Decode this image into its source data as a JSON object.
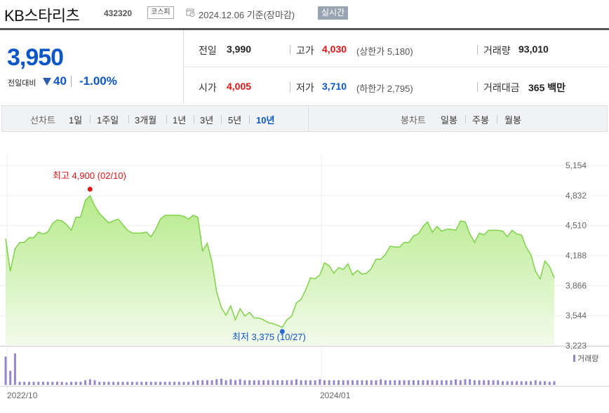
{
  "header": {
    "name": "KB스타리츠",
    "code": "432320",
    "market": "코스피",
    "date": "2024.12.06 기준(장마감)",
    "realtime": "실시간"
  },
  "price": {
    "current": "3,950",
    "vs_label": "전일대비",
    "change": "40",
    "change_pct": "-1.00%"
  },
  "stats": {
    "prev_label": "전일",
    "prev_value": "3,990",
    "high_label": "고가",
    "high_value": "4,030",
    "upper_limit": "(상한가 5,180)",
    "volume_label": "거래량",
    "volume_value": "93,010",
    "open_label": "시가",
    "open_value": "4,005",
    "low_label": "저가",
    "low_value": "3,710",
    "lower_limit": "(하한가 2,795)",
    "amount_label": "거래대금",
    "amount_value": "365 백만"
  },
  "tabs": {
    "line_label": "선차트",
    "line_periods": [
      "1일",
      "1주일",
      "3개월",
      "1년",
      "3년",
      "5년",
      "10년"
    ],
    "active_period": "10년",
    "candle_label": "봉차트",
    "candle_periods": [
      "일봉",
      "주봉",
      "월봉"
    ]
  },
  "colors": {
    "up": "#e01414",
    "down": "#0c56c8",
    "fill_top": "#b6ea8a",
    "fill_bottom": "#f3fbec",
    "line": "#7fd24a",
    "volume": "#9787c9"
  },
  "chart_data": {
    "type": "area",
    "y_ticks": [
      "5,154",
      "4,832",
      "4,510",
      "4,188",
      "3,866",
      "3,544",
      "3,223"
    ],
    "ylim": [
      3223,
      5154
    ],
    "x_labels": [
      "2022/10",
      "2024/01"
    ],
    "high_annotation": "최고  4,900 (02/10)",
    "low_annotation": "최저  3,375 (10/27)",
    "high_value": 4900,
    "low_value": 3375,
    "volume_legend": "거래량",
    "values": [
      4370,
      4020,
      4260,
      4330,
      4330,
      4380,
      4380,
      4440,
      4420,
      4440,
      4530,
      4570,
      4560,
      4520,
      4460,
      4600,
      4600,
      4780,
      4830,
      4720,
      4640,
      4590,
      4540,
      4560,
      4580,
      4520,
      4460,
      4430,
      4430,
      4430,
      4440,
      4390,
      4470,
      4580,
      4620,
      4620,
      4620,
      4620,
      4610,
      4580,
      4620,
      4600,
      4240,
      4320,
      4120,
      3800,
      3630,
      3550,
      3650,
      3500,
      3620,
      3540,
      3580,
      3520,
      3520,
      3500,
      3470,
      3460,
      3440,
      3420,
      3500,
      3540,
      3680,
      3720,
      3820,
      3950,
      3940,
      3980,
      4110,
      4080,
      4000,
      4060,
      4040,
      4100,
      3980,
      4030,
      3990,
      4000,
      4050,
      4150,
      4150,
      4200,
      4290,
      4280,
      4280,
      4330,
      4330,
      4400,
      4420,
      4500,
      4550,
      4440,
      4500,
      4450,
      4470,
      4470,
      4460,
      4560,
      4550,
      4420,
      4330,
      4430,
      4410,
      4460,
      4460,
      4460,
      4450,
      4390,
      4460,
      4420,
      4410,
      4280,
      4200,
      4020,
      3940,
      4130,
      4070,
      3950
    ],
    "volume": [
      0.9,
      0.45,
      1.0,
      0.1,
      0.1,
      0.1,
      0.1,
      0.1,
      0.1,
      0.1,
      0.1,
      0.1,
      0.1,
      0.08,
      0.1,
      0.1,
      0.1,
      0.15,
      0.18,
      0.15,
      0.1,
      0.1,
      0.1,
      0.1,
      0.1,
      0.1,
      0.1,
      0.1,
      0.1,
      0.1,
      0.1,
      0.1,
      0.1,
      0.1,
      0.1,
      0.1,
      0.1,
      0.1,
      0.1,
      0.1,
      0.12,
      0.15,
      0.15,
      0.15,
      0.15,
      0.18,
      0.2,
      0.15,
      0.18,
      0.15,
      0.18,
      0.15,
      0.15,
      0.15,
      0.15,
      0.15,
      0.15,
      0.15,
      0.15,
      0.15,
      0.15,
      0.15,
      0.18,
      0.15,
      0.15,
      0.15,
      0.15,
      0.18,
      0.15,
      0.15,
      0.15,
      0.15,
      0.15,
      0.15,
      0.15,
      0.15,
      0.15,
      0.15,
      0.15,
      0.15,
      0.18,
      0.15,
      0.15,
      0.15,
      0.15,
      0.15,
      0.15,
      0.15,
      0.15,
      0.15,
      0.15,
      0.15,
      0.15,
      0.15,
      0.15,
      0.15,
      0.18,
      0.15,
      0.18,
      0.18,
      0.15,
      0.15,
      0.15,
      0.15,
      0.15,
      0.15,
      0.12,
      0.12,
      0.12,
      0.12,
      0.12,
      0.12,
      0.12,
      0.15,
      0.12,
      0.12,
      0.1,
      0.12
    ]
  }
}
